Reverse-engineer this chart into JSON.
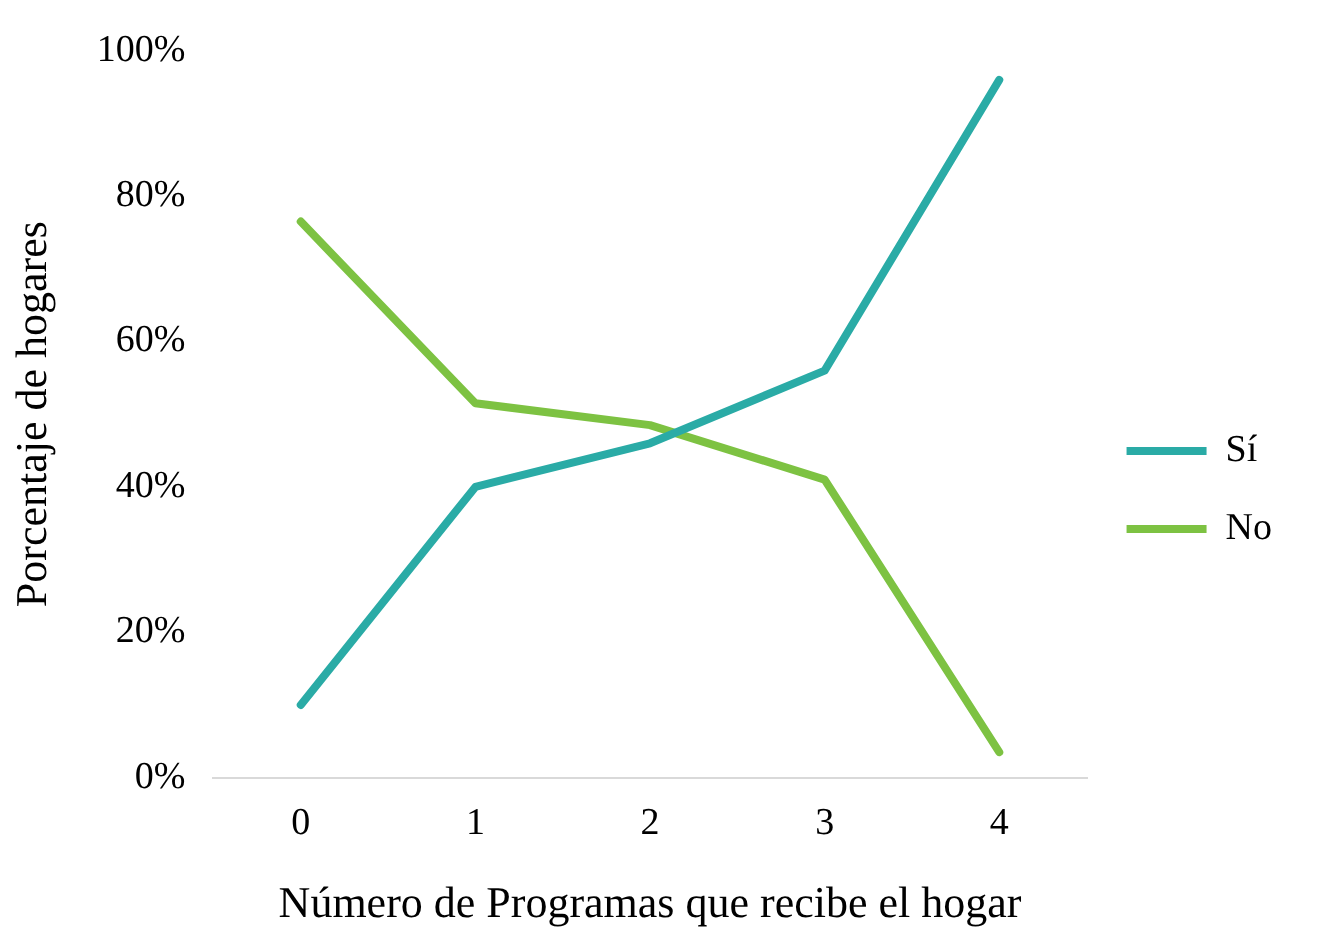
{
  "chart_data": {
    "type": "line",
    "xlabel": "Número de Programas que recibe el hogar",
    "ylabel": "Porcentaje de hogares",
    "categories": [
      "0",
      "1",
      "2",
      "3",
      "4"
    ],
    "series": [
      {
        "name": "Sí",
        "color": "#2aaba6",
        "values": [
          10,
          40,
          46,
          56,
          96
        ]
      },
      {
        "name": "No",
        "color": "#7dc242",
        "values": [
          76.5,
          51.5,
          48.5,
          41,
          3.5
        ]
      }
    ],
    "ylim": [
      0,
      100
    ],
    "yticks": [
      {
        "value": 0,
        "label": "0%"
      },
      {
        "value": 20,
        "label": "20%"
      },
      {
        "value": 40,
        "label": "40%"
      },
      {
        "value": 60,
        "label": "60%"
      },
      {
        "value": 80,
        "label": "80%"
      },
      {
        "value": 100,
        "label": "100%"
      }
    ],
    "grid": false,
    "legend": "right",
    "marker": "none",
    "line_style": "solid"
  }
}
